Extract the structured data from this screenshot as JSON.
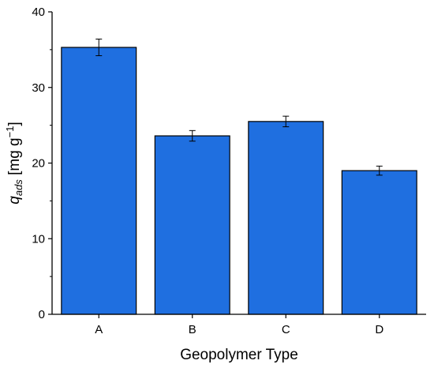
{
  "chart_data": {
    "type": "bar",
    "categories": [
      "A",
      "B",
      "C",
      "D"
    ],
    "values": [
      35.3,
      23.6,
      25.5,
      19.0
    ],
    "errors": [
      1.1,
      0.7,
      0.7,
      0.6
    ],
    "xlabel": "Geopolymer Type",
    "ylabel": {
      "symbol": "q",
      "subscript": "ads",
      "unit_open": " [mg g",
      "superscript": "−1",
      "unit_close": "]"
    },
    "ylim": [
      0,
      40
    ],
    "yticks": [
      0,
      10,
      20,
      30,
      40
    ],
    "grid": false,
    "legend": "none",
    "colors": {
      "bar": "#1f6fe0",
      "edge": "#000000",
      "error": "#000000"
    }
  }
}
